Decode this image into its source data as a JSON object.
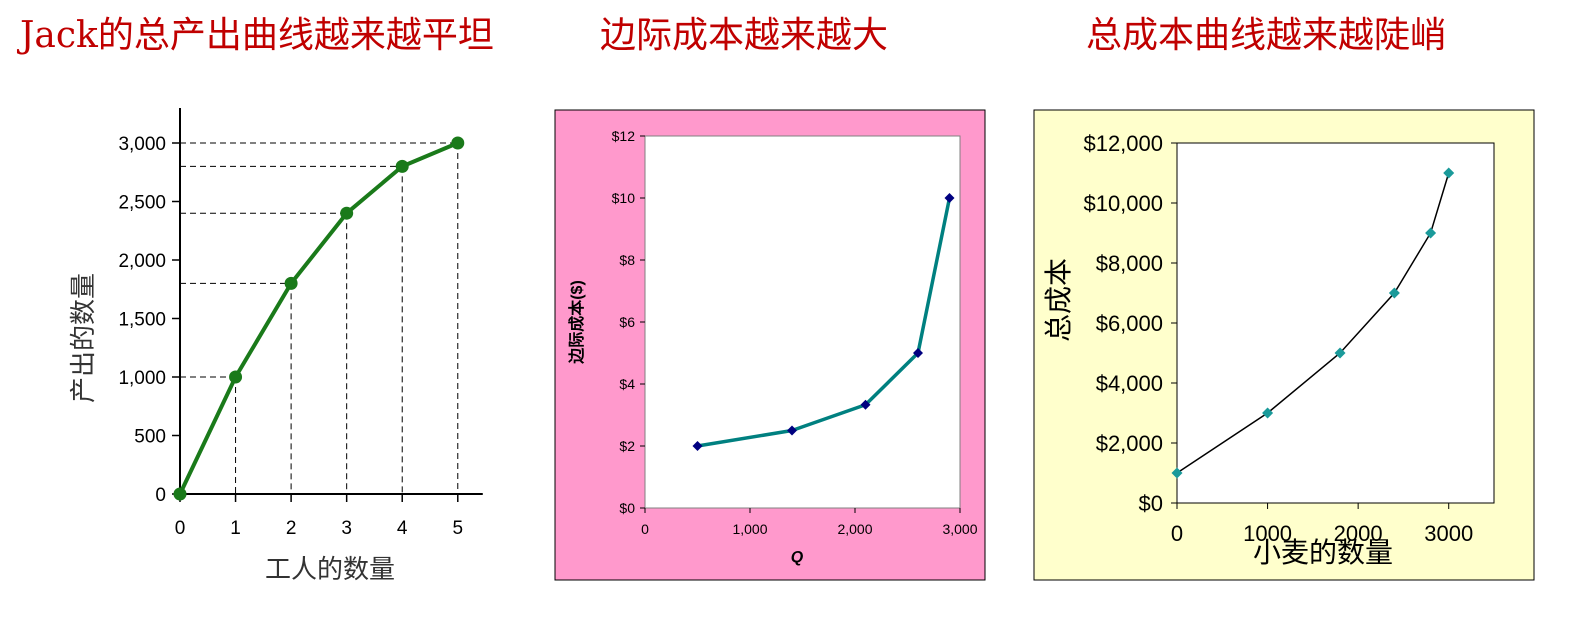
{
  "titles": {
    "left": "Jack的总产出曲线越来越平坦",
    "middle": "边际成本越来越大",
    "right": "总成本曲线越来越陡峭"
  },
  "colors": {
    "title": "#c00000",
    "chart1_line": "#1a7a1a",
    "chart2_bg": "#ff99cc",
    "chart2_line": "#008080",
    "chart2_marker": "#000080",
    "chart3_bg": "#ffffcc",
    "chart3_marker": "#1a9a9a"
  },
  "chart_data": [
    {
      "type": "line",
      "title": "Jack的总产出曲线越来越平坦",
      "xlabel": "工人的数量",
      "ylabel": "产出的数量",
      "x": [
        0,
        1,
        2,
        3,
        4,
        5
      ],
      "y": [
        0,
        1000,
        1800,
        2400,
        2800,
        3000
      ],
      "xlim": [
        0,
        5.4
      ],
      "ylim": [
        0,
        3000
      ],
      "xticks": [
        0,
        1,
        2,
        3,
        4,
        5
      ],
      "xtick_labels": [
        "0",
        "1",
        "2",
        "3",
        "4",
        "5"
      ],
      "yticks": [
        0,
        500,
        1000,
        1500,
        2000,
        2500,
        3000
      ],
      "ytick_labels": [
        "0",
        "500",
        "1,000",
        "1,500",
        "2,000",
        "2,500",
        "3,000"
      ],
      "dashed_guides": true,
      "grid": false
    },
    {
      "type": "line",
      "title": "边际成本越来越大",
      "xlabel": "Q",
      "ylabel": "边际成本($)",
      "x": [
        500,
        1400,
        2100,
        2600,
        2900
      ],
      "y": [
        2,
        2.5,
        3.33,
        5,
        10
      ],
      "xlim": [
        0,
        3000
      ],
      "ylim": [
        0,
        12
      ],
      "xticks": [
        0,
        1000,
        2000,
        3000
      ],
      "xtick_labels": [
        "0",
        "1,000",
        "2,000",
        "3,000"
      ],
      "yticks": [
        0,
        2,
        4,
        6,
        8,
        10,
        12
      ],
      "ytick_labels": [
        "$0",
        "$2",
        "$4",
        "$6",
        "$8",
        "$10",
        "$12"
      ],
      "grid": false
    },
    {
      "type": "line",
      "title": "总成本曲线越来越陡峭",
      "xlabel": "小麦的数量",
      "ylabel": "总成本",
      "x": [
        0,
        1000,
        1800,
        2400,
        2800,
        3000
      ],
      "y": [
        1000,
        3000,
        5000,
        7000,
        9000,
        11000
      ],
      "xlim": [
        0,
        3500
      ],
      "ylim": [
        0,
        12000
      ],
      "xticks": [
        0,
        1000,
        2000,
        3000
      ],
      "xtick_labels": [
        "0",
        "1000",
        "2000",
        "3000"
      ],
      "yticks": [
        0,
        2000,
        4000,
        6000,
        8000,
        10000,
        12000
      ],
      "ytick_labels": [
        "$0",
        "$2,000",
        "$4,000",
        "$6,000",
        "$8,000",
        "$10,000",
        "$12,000"
      ],
      "grid": false
    }
  ]
}
